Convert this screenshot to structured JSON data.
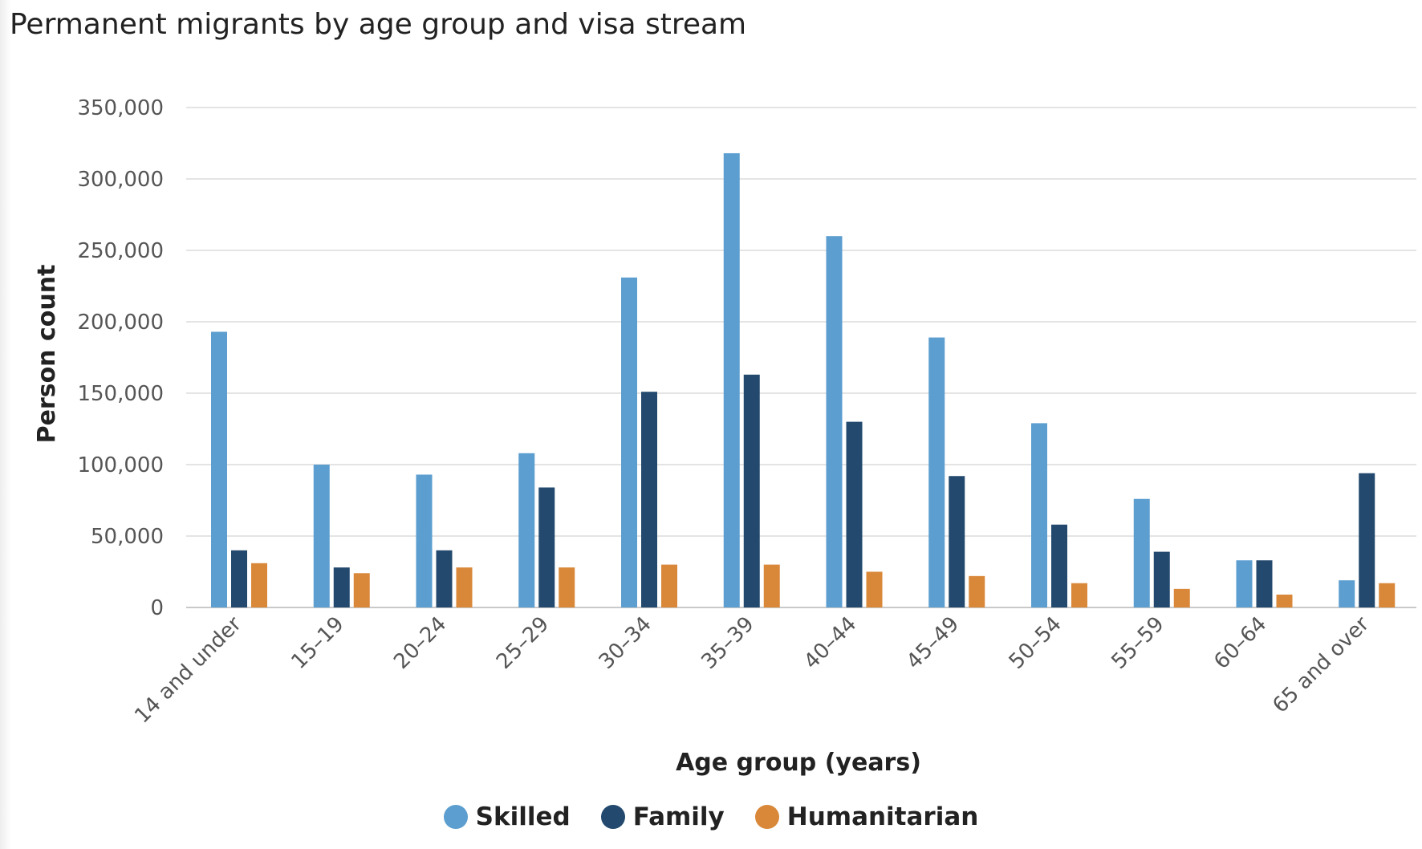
{
  "chart_data": {
    "type": "bar",
    "title": "Permanent migrants by age group and visa stream",
    "xlabel": "Age group (years)",
    "ylabel": "Person count",
    "ylim": [
      0,
      350000
    ],
    "yticks": [
      0,
      50000,
      100000,
      150000,
      200000,
      250000,
      300000,
      350000
    ],
    "ytick_labels": [
      "0",
      "50,000",
      "100,000",
      "150,000",
      "200,000",
      "250,000",
      "300,000",
      "350,000"
    ],
    "grid": true,
    "legend_position": "bottom-center",
    "categories": [
      "14 and under",
      "15–19",
      "20–24",
      "25–29",
      "30–34",
      "35–39",
      "40–44",
      "45–49",
      "50–54",
      "55–59",
      "60–64",
      "65 and over"
    ],
    "series": [
      {
        "name": "Skilled",
        "color": "#5b9ecf",
        "values": [
          193000,
          100000,
          93000,
          108000,
          231000,
          318000,
          260000,
          189000,
          129000,
          76000,
          33000,
          19000
        ]
      },
      {
        "name": "Family",
        "color": "#234a6e",
        "values": [
          40000,
          28000,
          40000,
          84000,
          151000,
          163000,
          130000,
          92000,
          58000,
          39000,
          33000,
          94000
        ]
      },
      {
        "name": "Humanitarian",
        "color": "#d9883a",
        "values": [
          31000,
          24000,
          28000,
          28000,
          30000,
          30000,
          25000,
          22000,
          17000,
          13000,
          9000,
          17000
        ]
      }
    ]
  }
}
